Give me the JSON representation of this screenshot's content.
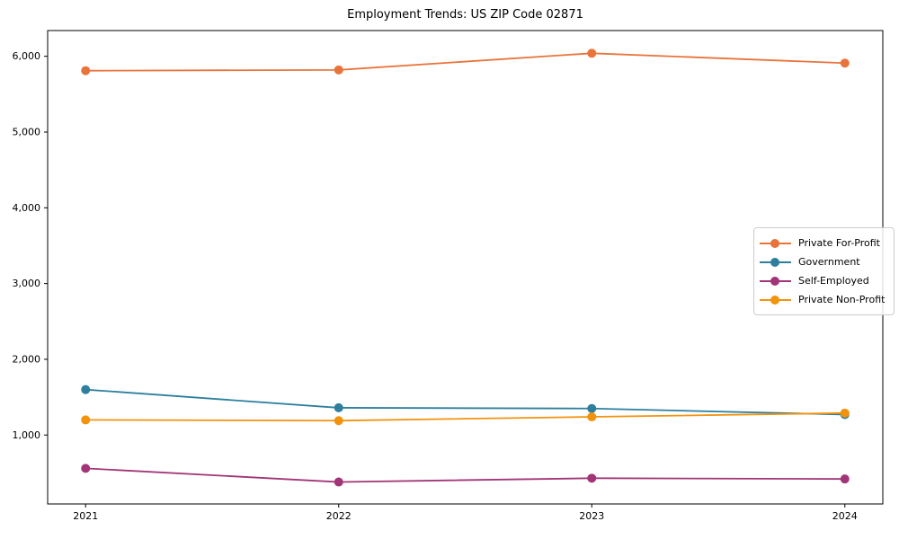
{
  "figure": {
    "title": "Employment Trends: US ZIP Code 02871"
  },
  "chart_data": {
    "type": "line",
    "title": "Employment Trends: US ZIP Code 02871",
    "xlabel": "",
    "ylabel": "",
    "x": [
      2021,
      2022,
      2023,
      2024
    ],
    "x_tick_labels": [
      "2021",
      "2022",
      "2023",
      "2024"
    ],
    "y_ticks": [
      1000,
      2000,
      3000,
      4000,
      5000,
      6000
    ],
    "y_tick_labels": [
      "1,000",
      "2,000",
      "3,000",
      "4,000",
      "5,000",
      "6,000"
    ],
    "series": [
      {
        "name": "Private For-Profit",
        "color": "#E8743B",
        "values": [
          5810,
          5820,
          6040,
          5910
        ]
      },
      {
        "name": "Government",
        "color": "#2E7F9E",
        "values": [
          1600,
          1360,
          1350,
          1270
        ]
      },
      {
        "name": "Self-Employed",
        "color": "#A23577",
        "values": [
          560,
          380,
          430,
          420
        ]
      },
      {
        "name": "Private Non-Profit",
        "color": "#F2930D",
        "values": [
          1200,
          1190,
          1240,
          1290
        ]
      }
    ],
    "xlim": [
      2020.85,
      2024.15
    ],
    "ylim": [
      90,
      6340
    ],
    "grid": false,
    "legend_position": "right-middle",
    "marker": "circle",
    "axis_color": "#000000",
    "background": "#ffffff"
  }
}
